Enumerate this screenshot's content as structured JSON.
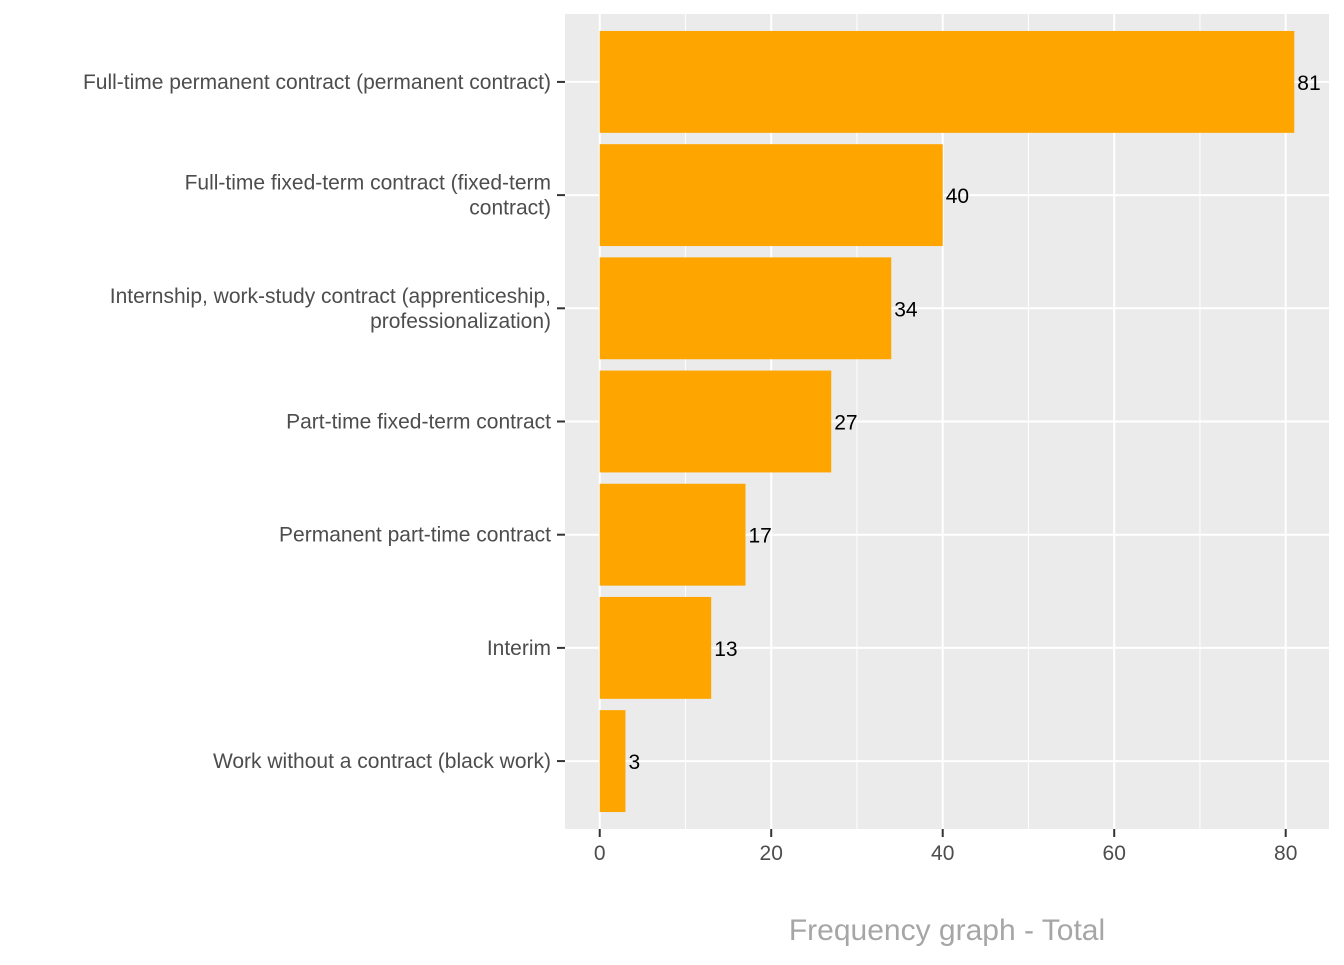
{
  "chart_data": {
    "type": "bar",
    "orientation": "horizontal",
    "title": "Frequency graph - Total",
    "xlabel": "",
    "ylabel": "",
    "categories": [
      "Full-time permanent contract (permanent contract)",
      "Full-time fixed-term contract (fixed-term contract)",
      "Internship, work-study contract (apprenticeship, professionalization)",
      "Part-time fixed-term contract",
      "Permanent part-time contract",
      "Interim",
      "Work without a contract (black work)"
    ],
    "category_lines": [
      [
        "Full-time permanent contract (permanent contract)"
      ],
      [
        "Full-time fixed-term contract (fixed-term",
        "contract)"
      ],
      [
        "Internship, work-study contract (apprenticeship,",
        "professionalization)"
      ],
      [
        "Part-time fixed-term contract"
      ],
      [
        "Permanent part-time contract"
      ],
      [
        "Interim"
      ],
      [
        "Work without a contract (black work)"
      ]
    ],
    "values": [
      81,
      40,
      34,
      27,
      17,
      13,
      3
    ],
    "data_labels": [
      "81",
      "40",
      "34",
      "27",
      "17",
      "13",
      "3"
    ],
    "xlim": [
      -4.05,
      85.05
    ],
    "x_ticks": [
      0,
      20,
      40,
      60,
      80
    ],
    "x_tick_labels": [
      "0",
      "20",
      "40",
      "60",
      "80"
    ],
    "x_minor_ticks": [
      10,
      30,
      50,
      70
    ],
    "grid": true,
    "legend": "none",
    "colors": {
      "bar": "#FFA500",
      "panel": "#EBEBEB",
      "grid": "#FFFFFF",
      "axis_text": "#4D4D4D",
      "title": "#A6A6A6"
    }
  }
}
